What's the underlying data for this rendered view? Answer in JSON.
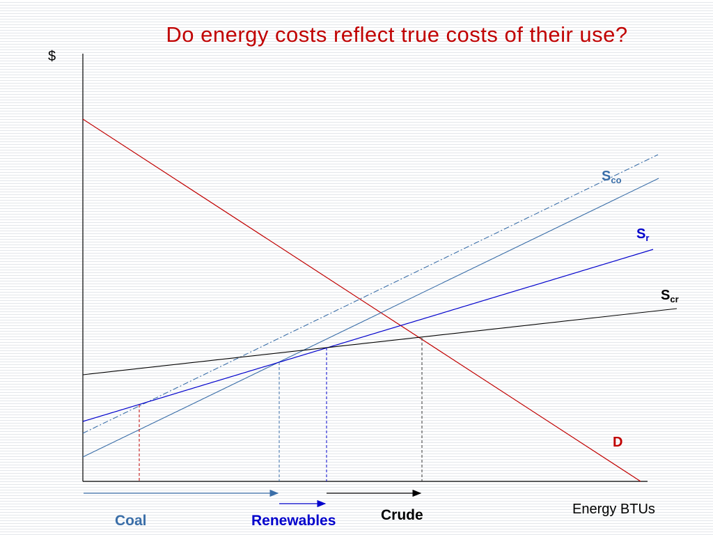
{
  "title": "Do energy costs reflect true costs of their use?",
  "axes": {
    "y_label": "$",
    "x_label": "Energy BTUs"
  },
  "curves": {
    "demand": {
      "label": "D",
      "color": "#c00000"
    },
    "supply_coal": {
      "label": "S",
      "sub": "co",
      "color": "#3a6ea8"
    },
    "supply_coal_true_cost": {
      "color": "#3a6ea8",
      "style": "dash-dot"
    },
    "supply_renewables": {
      "label": "S",
      "sub": "r",
      "color": "#0000cc"
    },
    "supply_crude": {
      "label": "S",
      "sub": "cr",
      "color": "#000000"
    }
  },
  "quantities": {
    "coal": {
      "label": "Coal",
      "color": "#3a6ea8"
    },
    "renewables": {
      "label": "Renewables",
      "color": "#0000cc"
    },
    "crude": {
      "label": "Crude",
      "color": "#000000"
    }
  }
}
